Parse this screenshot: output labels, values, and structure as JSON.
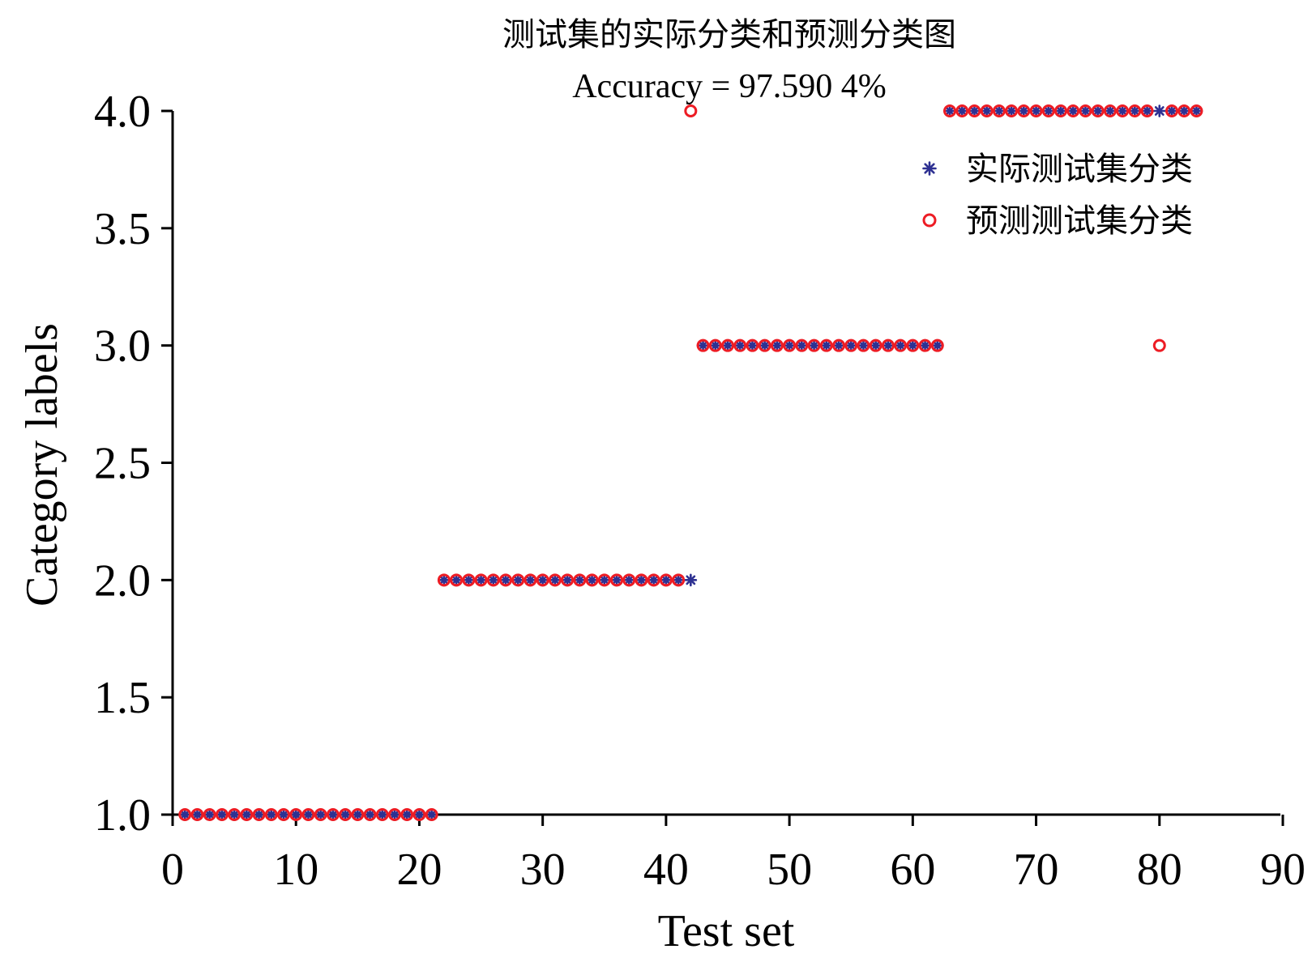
{
  "chart_data": {
    "type": "scatter",
    "title": "测试集的实际分类和预测分类图",
    "subtitle": "Accuracy = 97.590 4%",
    "xlabel": "Test set",
    "ylabel": "Category labels",
    "xlim": [
      0,
      90
    ],
    "ylim": [
      1.0,
      4.0
    ],
    "x_ticks": [
      "0",
      "10",
      "20",
      "30",
      "40",
      "50",
      "60",
      "70",
      "80",
      "90"
    ],
    "y_ticks": [
      "1.0",
      "1.5",
      "2.0",
      "2.5",
      "3.0",
      "3.5",
      "4.0"
    ],
    "grid": false,
    "legend_position": "top-right",
    "series": [
      {
        "name": "实际测试集分类",
        "marker": "asterisk",
        "color": "#2e3192",
        "x": [
          1,
          2,
          3,
          4,
          5,
          6,
          7,
          8,
          9,
          10,
          11,
          12,
          13,
          14,
          15,
          16,
          17,
          18,
          19,
          20,
          21,
          22,
          23,
          24,
          25,
          26,
          27,
          28,
          29,
          30,
          31,
          32,
          33,
          34,
          35,
          36,
          37,
          38,
          39,
          40,
          41,
          42,
          43,
          44,
          45,
          46,
          47,
          48,
          49,
          50,
          51,
          52,
          53,
          54,
          55,
          56,
          57,
          58,
          59,
          60,
          61,
          62,
          63,
          64,
          65,
          66,
          67,
          68,
          69,
          70,
          71,
          72,
          73,
          74,
          75,
          76,
          77,
          78,
          79,
          80,
          81,
          82,
          83
        ],
        "y": [
          1,
          1,
          1,
          1,
          1,
          1,
          1,
          1,
          1,
          1,
          1,
          1,
          1,
          1,
          1,
          1,
          1,
          1,
          1,
          1,
          1,
          2,
          2,
          2,
          2,
          2,
          2,
          2,
          2,
          2,
          2,
          2,
          2,
          2,
          2,
          2,
          2,
          2,
          2,
          2,
          2,
          2,
          3,
          3,
          3,
          3,
          3,
          3,
          3,
          3,
          3,
          3,
          3,
          3,
          3,
          3,
          3,
          3,
          3,
          3,
          3,
          3,
          4,
          4,
          4,
          4,
          4,
          4,
          4,
          4,
          4,
          4,
          4,
          4,
          4,
          4,
          4,
          4,
          4,
          4,
          4,
          4,
          4
        ]
      },
      {
        "name": "预测测试集分类",
        "marker": "circle",
        "color": "#ed1c24",
        "x": [
          1,
          2,
          3,
          4,
          5,
          6,
          7,
          8,
          9,
          10,
          11,
          12,
          13,
          14,
          15,
          16,
          17,
          18,
          19,
          20,
          21,
          22,
          23,
          24,
          25,
          26,
          27,
          28,
          29,
          30,
          31,
          32,
          33,
          34,
          35,
          36,
          37,
          38,
          39,
          40,
          41,
          42,
          43,
          44,
          45,
          46,
          47,
          48,
          49,
          50,
          51,
          52,
          53,
          54,
          55,
          56,
          57,
          58,
          59,
          60,
          61,
          62,
          63,
          64,
          65,
          66,
          67,
          68,
          69,
          70,
          71,
          72,
          73,
          74,
          75,
          76,
          77,
          78,
          79,
          80,
          81,
          82,
          83
        ],
        "y": [
          1,
          1,
          1,
          1,
          1,
          1,
          1,
          1,
          1,
          1,
          1,
          1,
          1,
          1,
          1,
          1,
          1,
          1,
          1,
          1,
          1,
          2,
          2,
          2,
          2,
          2,
          2,
          2,
          2,
          2,
          2,
          2,
          2,
          2,
          2,
          2,
          2,
          2,
          2,
          2,
          2,
          4,
          3,
          3,
          3,
          3,
          3,
          3,
          3,
          3,
          3,
          3,
          3,
          3,
          3,
          3,
          3,
          3,
          3,
          3,
          3,
          3,
          4,
          4,
          4,
          4,
          4,
          4,
          4,
          4,
          4,
          4,
          4,
          4,
          4,
          4,
          4,
          4,
          4,
          3,
          4,
          4,
          4
        ]
      }
    ]
  }
}
